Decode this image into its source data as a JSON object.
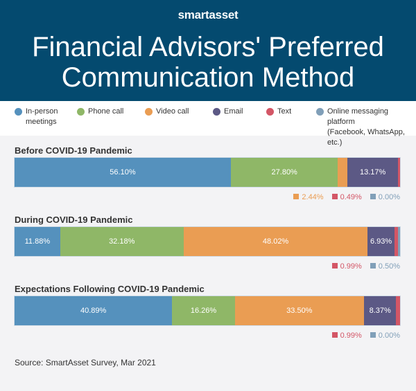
{
  "header": {
    "logo": "smartasset",
    "title": "Financial Advisors' Preferred Communication Method",
    "background": "#044a6f"
  },
  "chart_data": {
    "type": "bar",
    "orientation": "horizontal-stacked-100",
    "title": "Financial Advisors' Preferred Communication Method",
    "legend_position": "top",
    "series": [
      {
        "name": "In-person meetings",
        "color": "#5591bd"
      },
      {
        "name": "Phone call",
        "color": "#8fb767"
      },
      {
        "name": "Video call",
        "color": "#ea9d53"
      },
      {
        "name": "Email",
        "color": "#5c5985"
      },
      {
        "name": "Text",
        "color": "#d35666"
      },
      {
        "name": "Online messaging platform (Facebook, WhatsApp, etc.)",
        "color": "#809fb8"
      }
    ],
    "categories": [
      "Before COVID-19 Pandemic",
      "During COVID-19 Pandemic",
      "Expectations Following COVID-19 Pandemic"
    ],
    "values": [
      [
        56.1,
        27.8,
        2.44,
        13.17,
        0.49,
        0.0
      ],
      [
        11.88,
        32.18,
        48.02,
        6.93,
        0.99,
        0.5
      ],
      [
        40.89,
        16.26,
        33.5,
        8.37,
        0.99,
        0.0
      ]
    ],
    "labels": [
      [
        "56.10%",
        "27.80%",
        "2.44%",
        "13.17%",
        "0.49%",
        "0.00%"
      ],
      [
        "11.88%",
        "32.18%",
        "48.02%",
        "6.93%",
        "0.99%",
        "0.50%"
      ],
      [
        "40.89%",
        "16.26%",
        "33.50%",
        "8.37%",
        "0.99%",
        "0.00%"
      ]
    ],
    "label_placement": [
      [
        "inside",
        "inside",
        "outside",
        "inside",
        "outside",
        "outside"
      ],
      [
        "inside",
        "inside",
        "inside",
        "inside",
        "outside",
        "outside"
      ],
      [
        "inside",
        "inside",
        "inside",
        "inside",
        "outside",
        "outside"
      ]
    ]
  },
  "legend": [
    {
      "label": "In-person",
      "label2": "meetings"
    },
    {
      "label": "Phone call",
      "label2": ""
    },
    {
      "label": "Video call",
      "label2": ""
    },
    {
      "label": "Email",
      "label2": ""
    },
    {
      "label": "Text",
      "label2": ""
    },
    {
      "label": "Online messaging platform",
      "label2": "(Facebook, WhatsApp, etc.)"
    }
  ],
  "source": "Source: SmartAsset Survey, Mar 2021"
}
